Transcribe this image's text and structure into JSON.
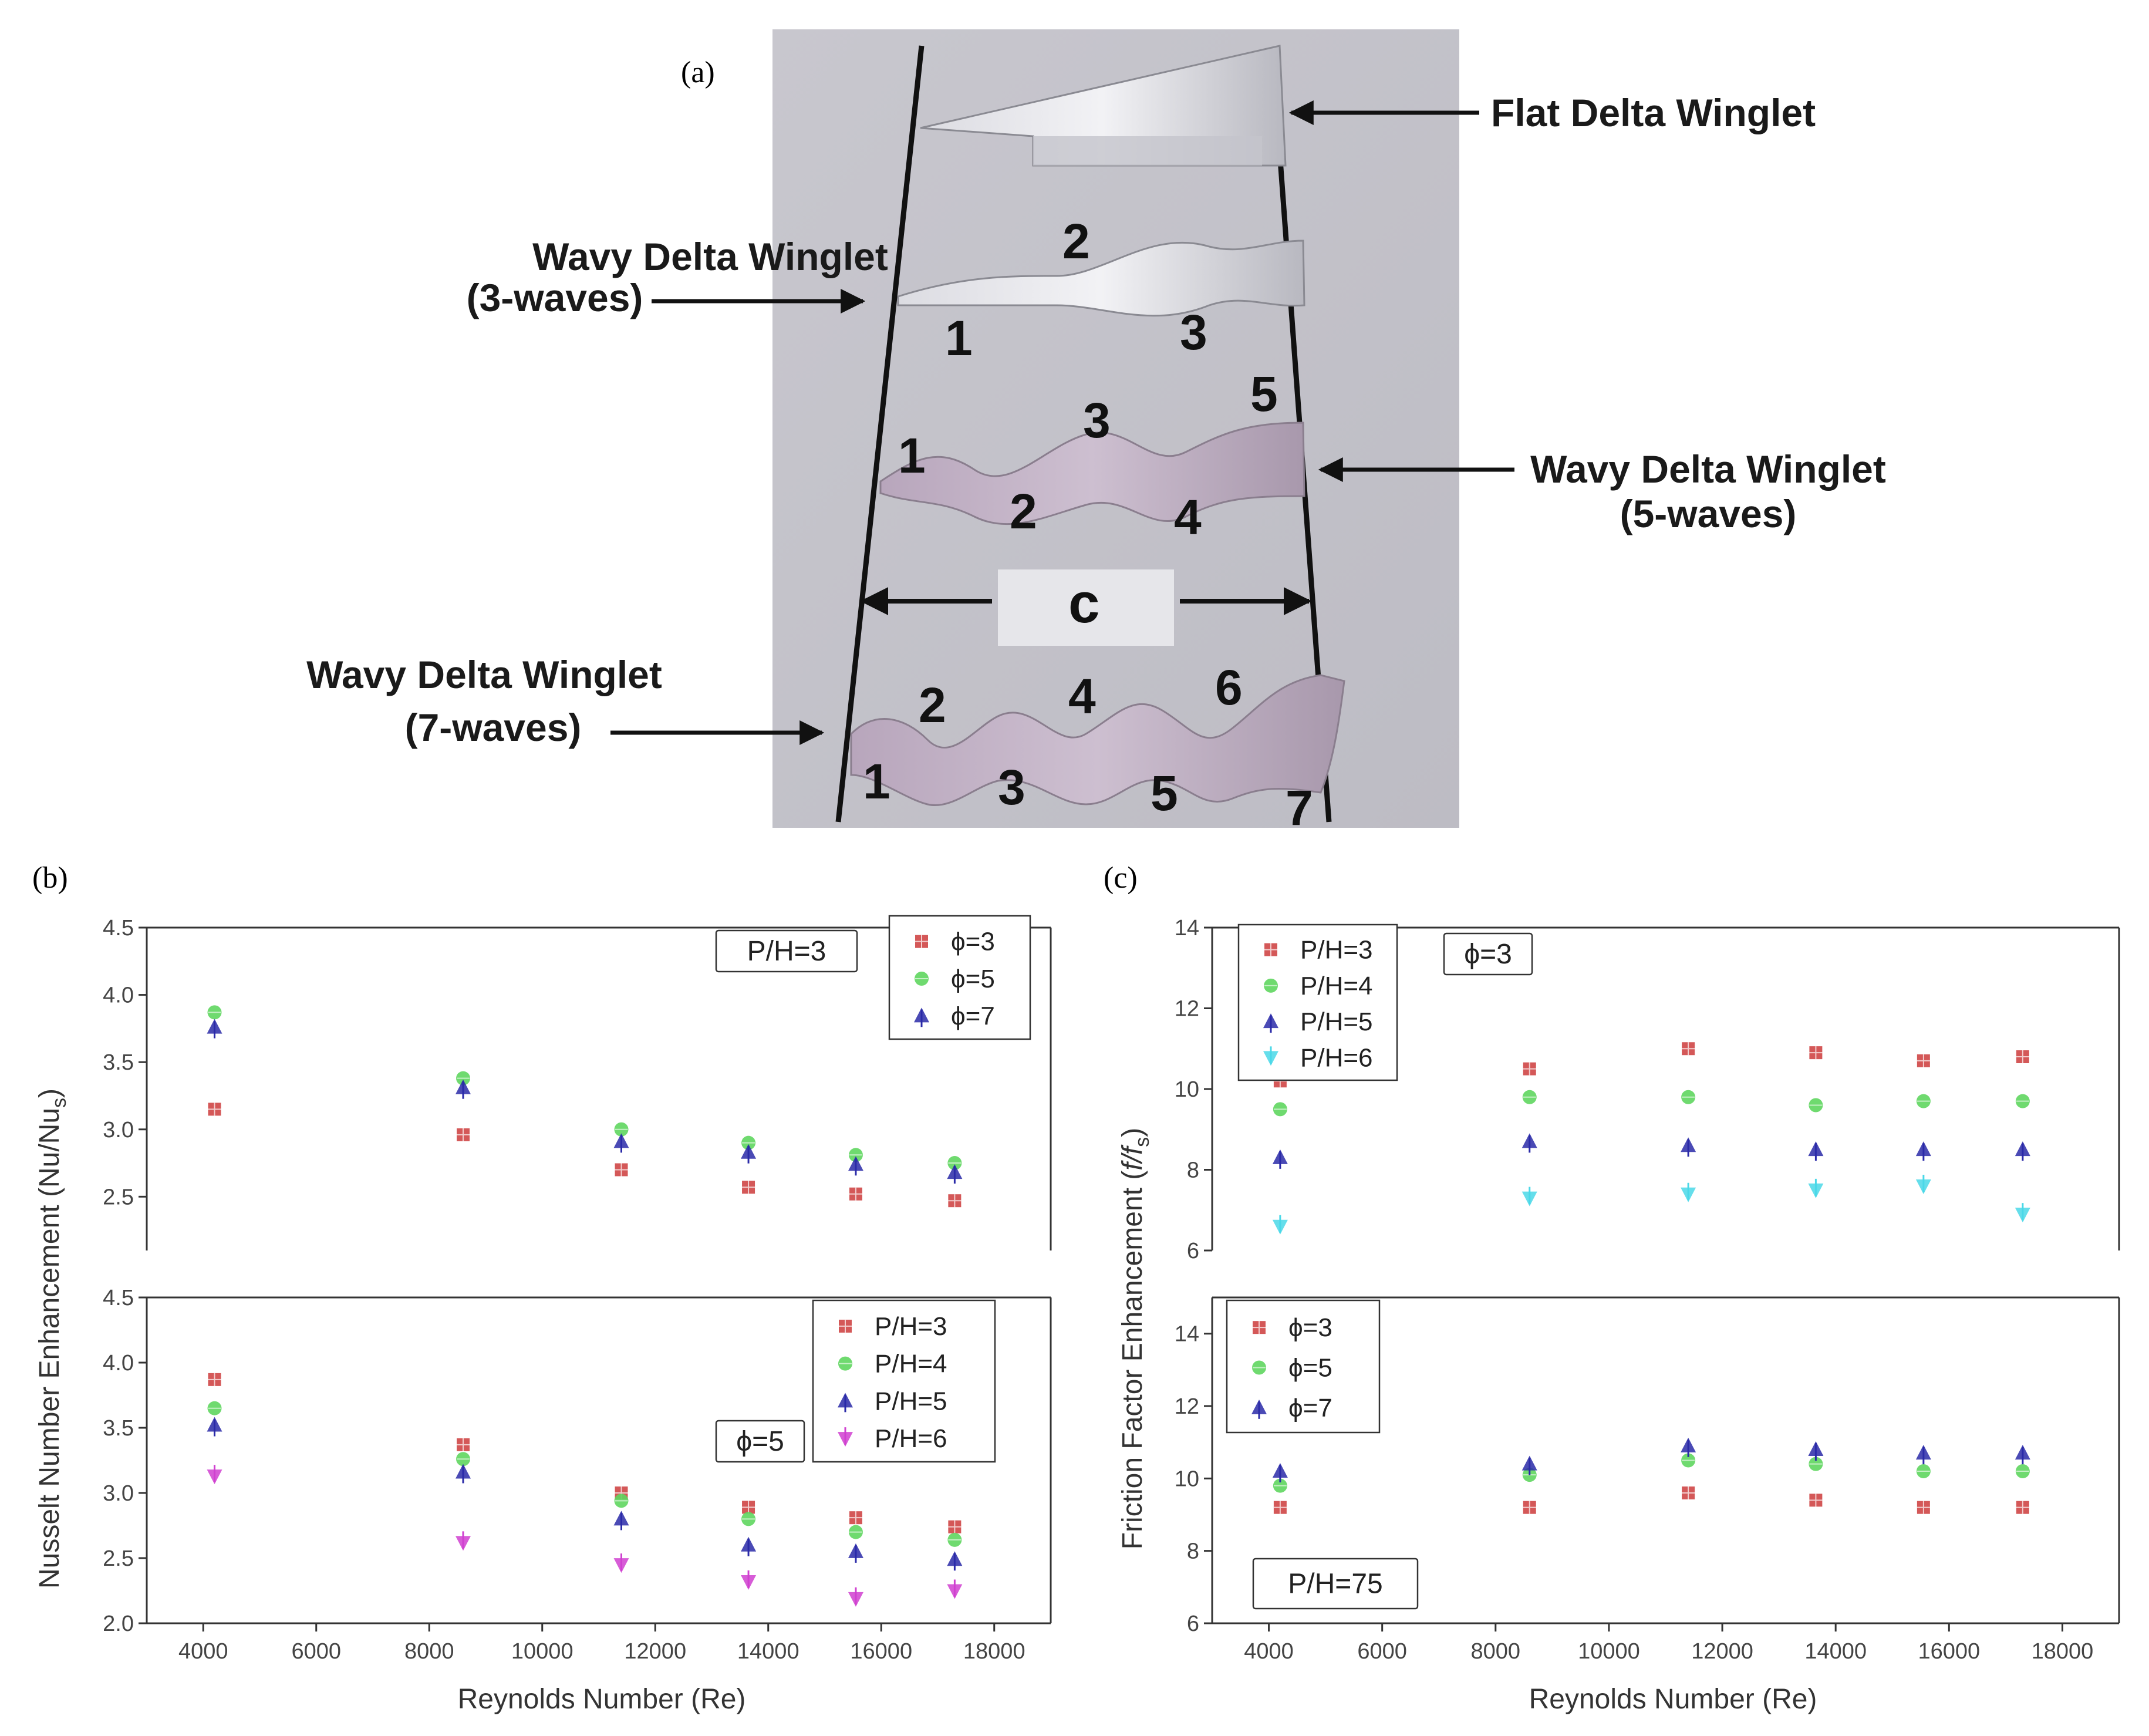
{
  "panels": {
    "a": "(a)",
    "b": "(b)",
    "c": "(c)"
  },
  "photo": {
    "labels": {
      "flat": "Flat Delta Winglet",
      "wavy3_line1": "Wavy Delta Winglet",
      "wavy3_line2": "(3-waves)",
      "wavy5_line1": "Wavy Delta Winglet",
      "wavy5_line2": "(5-waves)",
      "wavy7_line1": "Wavy Delta Winglet",
      "wavy7_line2": "(7-waves)",
      "chord": "c"
    },
    "wave_numbers_3": [
      "1",
      "2",
      "3"
    ],
    "wave_numbers_5": [
      "1",
      "2",
      "3",
      "4",
      "5"
    ],
    "wave_numbers_7": [
      "1",
      "2",
      "3",
      "4",
      "5",
      "6",
      "7"
    ]
  },
  "colors": {
    "red": "#cc3b3b",
    "green": "#5fd65f",
    "blue": "#2a2aa8",
    "magenta": "#d040d0",
    "cyan": "#4ad8e8"
  },
  "chart_data": [
    {
      "id": "b-top",
      "type": "scatter",
      "x": [
        4200,
        8600,
        11400,
        13650,
        15550,
        17300
      ],
      "xlim": [
        3000,
        19000
      ],
      "ylim": [
        2.1,
        4.5
      ],
      "yticks": [
        "2.5",
        "3.0",
        "3.5",
        "4.0",
        "4.5"
      ],
      "annotation": "P/H=3",
      "legend_position": "top-right",
      "series": [
        {
          "name": "ϕ=3",
          "marker": "square",
          "color": "#cc3b3b",
          "values": [
            3.15,
            2.96,
            2.7,
            2.57,
            2.52,
            2.47
          ]
        },
        {
          "name": "ϕ=5",
          "marker": "circle",
          "color": "#5fd65f",
          "values": [
            3.87,
            3.38,
            3.0,
            2.9,
            2.81,
            2.75
          ]
        },
        {
          "name": "ϕ=7",
          "marker": "triangle",
          "color": "#2a2aa8",
          "values": [
            3.76,
            3.31,
            2.91,
            2.83,
            2.74,
            2.68
          ]
        }
      ]
    },
    {
      "id": "b-bottom",
      "type": "scatter",
      "x": [
        4200,
        8600,
        11400,
        13650,
        15550,
        17300
      ],
      "xlim": [
        3000,
        19000
      ],
      "ylim": [
        2.0,
        4.5
      ],
      "yticks": [
        "2.0",
        "2.5",
        "3.0",
        "3.5",
        "4.0",
        "4.5"
      ],
      "xticks": [
        "4000",
        "6000",
        "8000",
        "10000",
        "12000",
        "14000",
        "16000",
        "18000"
      ],
      "annotation": "ϕ=5",
      "legend_position": "top-right",
      "series": [
        {
          "name": "P/H=3",
          "marker": "square",
          "color": "#cc3b3b",
          "values": [
            3.87,
            3.37,
            3.0,
            2.89,
            2.81,
            2.74
          ]
        },
        {
          "name": "P/H=4",
          "marker": "circle",
          "color": "#5fd65f",
          "values": [
            3.65,
            3.26,
            2.94,
            2.8,
            2.7,
            2.64
          ]
        },
        {
          "name": "P/H=5",
          "marker": "triangle",
          "color": "#2a2aa8",
          "values": [
            3.52,
            3.16,
            2.8,
            2.6,
            2.55,
            2.49
          ]
        },
        {
          "name": "P/H=6",
          "marker": "triangle-down",
          "color": "#d040d0",
          "values": [
            3.13,
            2.62,
            2.45,
            2.32,
            2.19,
            2.25
          ]
        }
      ],
      "xlabel": "Reynolds Number (Re)",
      "shared_ylabel": "Nusselt Number Enhancement (Nu/Nu",
      "shared_ylabel_sub": "s",
      "shared_ylabel_end": ")"
    },
    {
      "id": "c-top",
      "type": "scatter",
      "x": [
        4200,
        8600,
        11400,
        13650,
        15550,
        17300
      ],
      "xlim": [
        3000,
        19000
      ],
      "ylim": [
        6,
        14
      ],
      "yticks": [
        "6",
        "8",
        "10",
        "12",
        "14"
      ],
      "annotation": "ϕ=3",
      "legend_position": "top-left",
      "series": [
        {
          "name": "P/H=3",
          "marker": "square",
          "color": "#cc3b3b",
          "values": [
            10.2,
            10.5,
            11.0,
            10.9,
            10.7,
            10.8
          ]
        },
        {
          "name": "P/H=4",
          "marker": "circle",
          "color": "#5fd65f",
          "values": [
            9.5,
            9.8,
            9.8,
            9.6,
            9.7,
            9.7
          ]
        },
        {
          "name": "P/H=5",
          "marker": "triangle",
          "color": "#2a2aa8",
          "values": [
            8.3,
            8.7,
            8.6,
            8.5,
            8.5,
            8.5
          ]
        },
        {
          "name": "P/H=6",
          "marker": "triangle-down",
          "color": "#4ad8e8",
          "values": [
            6.6,
            7.3,
            7.4,
            7.5,
            7.6,
            6.9
          ]
        }
      ]
    },
    {
      "id": "c-bottom",
      "type": "scatter",
      "x": [
        4200,
        8600,
        11400,
        13650,
        15550,
        17300
      ],
      "xlim": [
        3000,
        19000
      ],
      "ylim": [
        6,
        15
      ],
      "yticks": [
        "6",
        "8",
        "10",
        "12",
        "14"
      ],
      "xticks": [
        "4000",
        "6000",
        "8000",
        "10000",
        "12000",
        "14000",
        "16000",
        "18000"
      ],
      "annotation": "P/H=75",
      "legend_position": "top-left",
      "series": [
        {
          "name": "ϕ=3",
          "marker": "square",
          "color": "#cc3b3b",
          "values": [
            9.2,
            9.2,
            9.6,
            9.4,
            9.2,
            9.2
          ]
        },
        {
          "name": "ϕ=5",
          "marker": "circle",
          "color": "#5fd65f",
          "values": [
            9.8,
            10.1,
            10.5,
            10.4,
            10.2,
            10.2
          ]
        },
        {
          "name": "ϕ=7",
          "marker": "triangle",
          "color": "#2a2aa8",
          "values": [
            10.2,
            10.4,
            10.9,
            10.8,
            10.7,
            10.7
          ]
        }
      ],
      "xlabel": "Reynolds Number (Re)",
      "shared_ylabel": "Friction Factor Enhancement (",
      "shared_ylabel_italic": "f/f",
      "shared_ylabel_sub": "s",
      "shared_ylabel_end": ")"
    }
  ]
}
